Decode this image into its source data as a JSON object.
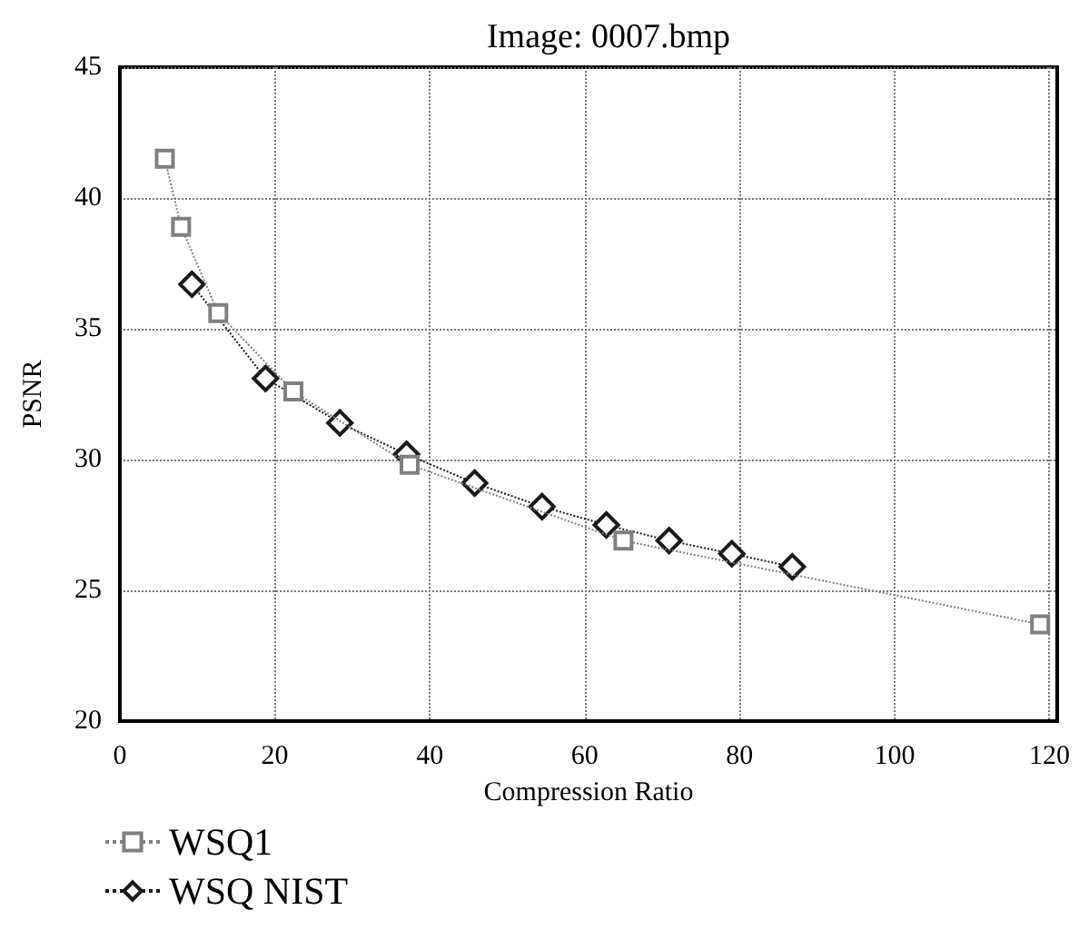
{
  "chart_data": {
    "type": "line",
    "title": "Image: 0007.bmp",
    "xlabel": "Compression Ratio",
    "ylabel": "PSNR",
    "xlim": [
      0,
      121
    ],
    "xticks": [
      0,
      20,
      40,
      60,
      80,
      100,
      120
    ],
    "ylim": [
      20,
      45
    ],
    "yticks": [
      20,
      25,
      30,
      35,
      40,
      45
    ],
    "grid": true,
    "legend": "bottom left",
    "line_style": "dotted",
    "series": [
      {
        "name": "WSQ1",
        "color": "#7f7f7f",
        "marker": "square",
        "x": [
          5.8,
          7.9,
          12.7,
          22.4,
          37.4,
          65,
          118.8
        ],
        "values": [
          41.5,
          38.9,
          35.6,
          32.6,
          29.8,
          26.9,
          23.7
        ]
      },
      {
        "name": "WSQ NIST",
        "color": "#1a1a1a",
        "marker": "diamond",
        "x": [
          9.3,
          18.8,
          28.4,
          37.0,
          45.8,
          54.5,
          62.8,
          70.9,
          79,
          86.8
        ],
        "values": [
          36.7,
          33.1,
          31.4,
          30.2,
          29.1,
          28.2,
          27.5,
          26.9,
          26.4,
          25.9
        ]
      }
    ]
  }
}
